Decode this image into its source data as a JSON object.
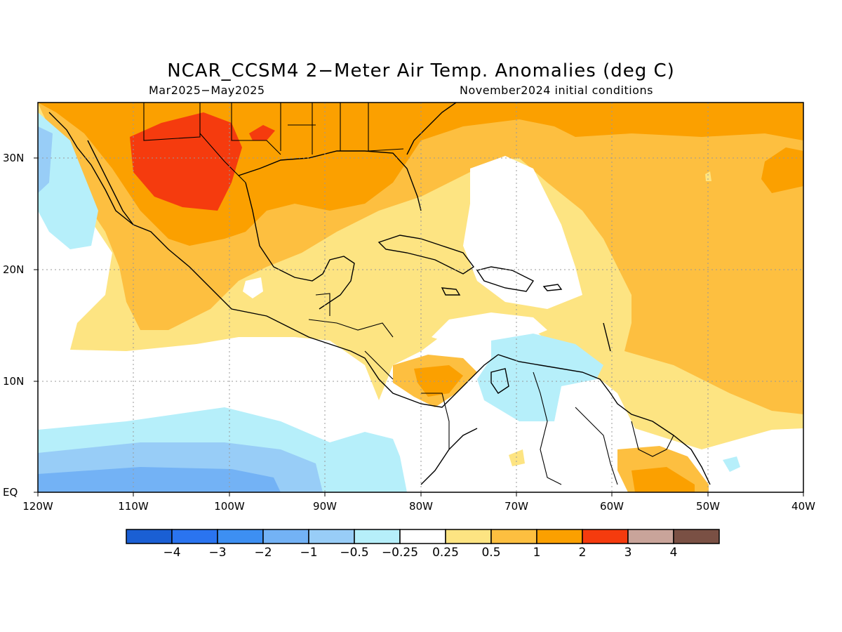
{
  "title": "NCAR_CCSM4 2−Meter Air Temp. Anomalies (deg C)",
  "period": "Mar2025−May2025",
  "initial": "November2024 initial conditions",
  "lat_labels": [
    "30N",
    "20N",
    "10N",
    "EQ"
  ],
  "lon_labels": [
    "120W",
    "110W",
    "100W",
    "90W",
    "80W",
    "70W",
    "60W",
    "50W",
    "40W"
  ],
  "colorbar": {
    "labels": [
      "−4",
      "−3",
      "−2",
      "−1",
      "−0.5",
      "−0.25",
      "0.25",
      "0.5",
      "1",
      "2",
      "3",
      "4"
    ],
    "colors": [
      "#1a5fd4",
      "#2a74f0",
      "#3d8ff2",
      "#73b2f5",
      "#98cdf7",
      "#b6effa",
      "#ffffff",
      "#fde482",
      "#fdbf40",
      "#fba000",
      "#f53b0e",
      "#c9a49a",
      "#7a5044"
    ]
  },
  "map": {
    "extent": {
      "lon": [
        -120,
        -40
      ],
      "lat": [
        0,
        35
      ]
    },
    "field": "2-meter air temperature anomaly",
    "units": "deg C"
  }
}
